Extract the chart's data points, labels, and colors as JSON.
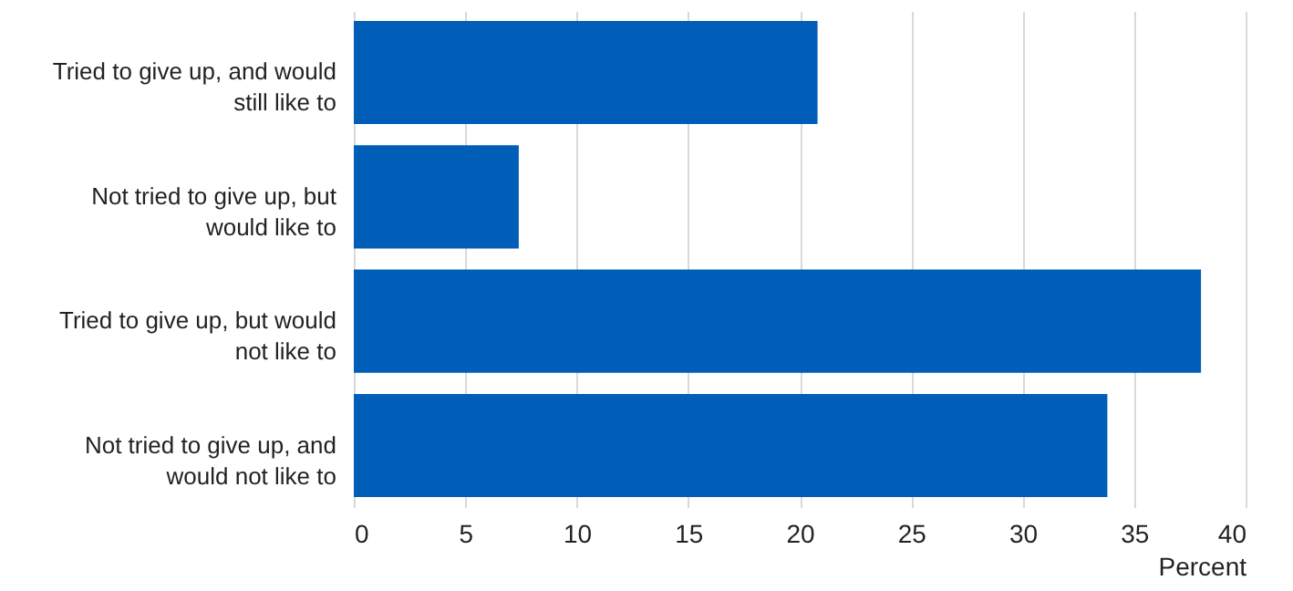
{
  "chart_data": {
    "type": "bar",
    "orientation": "horizontal",
    "xlabel": "Percent",
    "categories": [
      "Tried to give up, and would still like to",
      "Not tried to give up, but would like to",
      "Tried to give up, but would not like to",
      "Not tried to give up, and would not like to"
    ],
    "values": [
      20.8,
      7.4,
      38.0,
      33.8
    ],
    "color": "#005eb8",
    "xlim": [
      0,
      40
    ],
    "xticks": [
      0,
      5,
      10,
      15,
      20,
      25,
      30,
      35,
      40
    ],
    "grid": "x"
  }
}
